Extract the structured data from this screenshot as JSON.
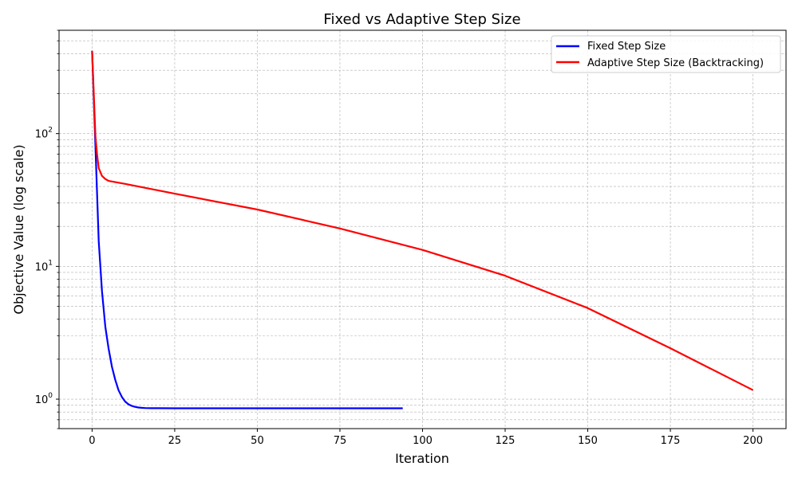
{
  "chart_data": {
    "type": "line",
    "title": "Fixed vs Adaptive Step Size",
    "xlabel": "Iteration",
    "ylabel": "Objective Value (log scale)",
    "xlim": [
      -10,
      210
    ],
    "ylim": [
      0.6,
      600
    ],
    "yscale": "log",
    "grid": true,
    "legend_position": "top-right",
    "x_ticks": [
      0,
      25,
      50,
      75,
      100,
      125,
      150,
      175,
      200
    ],
    "y_ticks": [
      {
        "value": 1,
        "mantissa": "10",
        "exponent": "0"
      },
      {
        "value": 10,
        "mantissa": "10",
        "exponent": "1"
      },
      {
        "value": 100,
        "mantissa": "10",
        "exponent": "2"
      }
    ],
    "series": [
      {
        "name": "Fixed Step Size",
        "color": "#0000ff",
        "x": [
          0,
          1,
          2,
          3,
          4,
          5,
          6,
          7,
          8,
          9,
          10,
          11,
          12,
          13,
          14,
          15,
          16,
          18,
          20,
          25,
          30,
          40,
          50,
          60,
          70,
          80,
          90,
          94
        ],
        "y": [
          420,
          80,
          15.5,
          6.5,
          3.5,
          2.4,
          1.75,
          1.4,
          1.17,
          1.04,
          0.96,
          0.915,
          0.89,
          0.875,
          0.865,
          0.86,
          0.857,
          0.855,
          0.854,
          0.853,
          0.853,
          0.853,
          0.853,
          0.853,
          0.853,
          0.853,
          0.853,
          0.853
        ]
      },
      {
        "name": "Adaptive Step Size (Backtracking)",
        "color": "#ff0000",
        "x": [
          0,
          0.5,
          1,
          1.5,
          2,
          3,
          4,
          5,
          10,
          25,
          50,
          75,
          100,
          125,
          150,
          175,
          200
        ],
        "y": [
          420,
          200,
          95,
          70,
          55,
          48,
          45.5,
          44,
          41.8,
          35.3,
          26.8,
          19.3,
          13.3,
          8.5,
          4.85,
          2.42,
          1.17
        ]
      }
    ]
  }
}
